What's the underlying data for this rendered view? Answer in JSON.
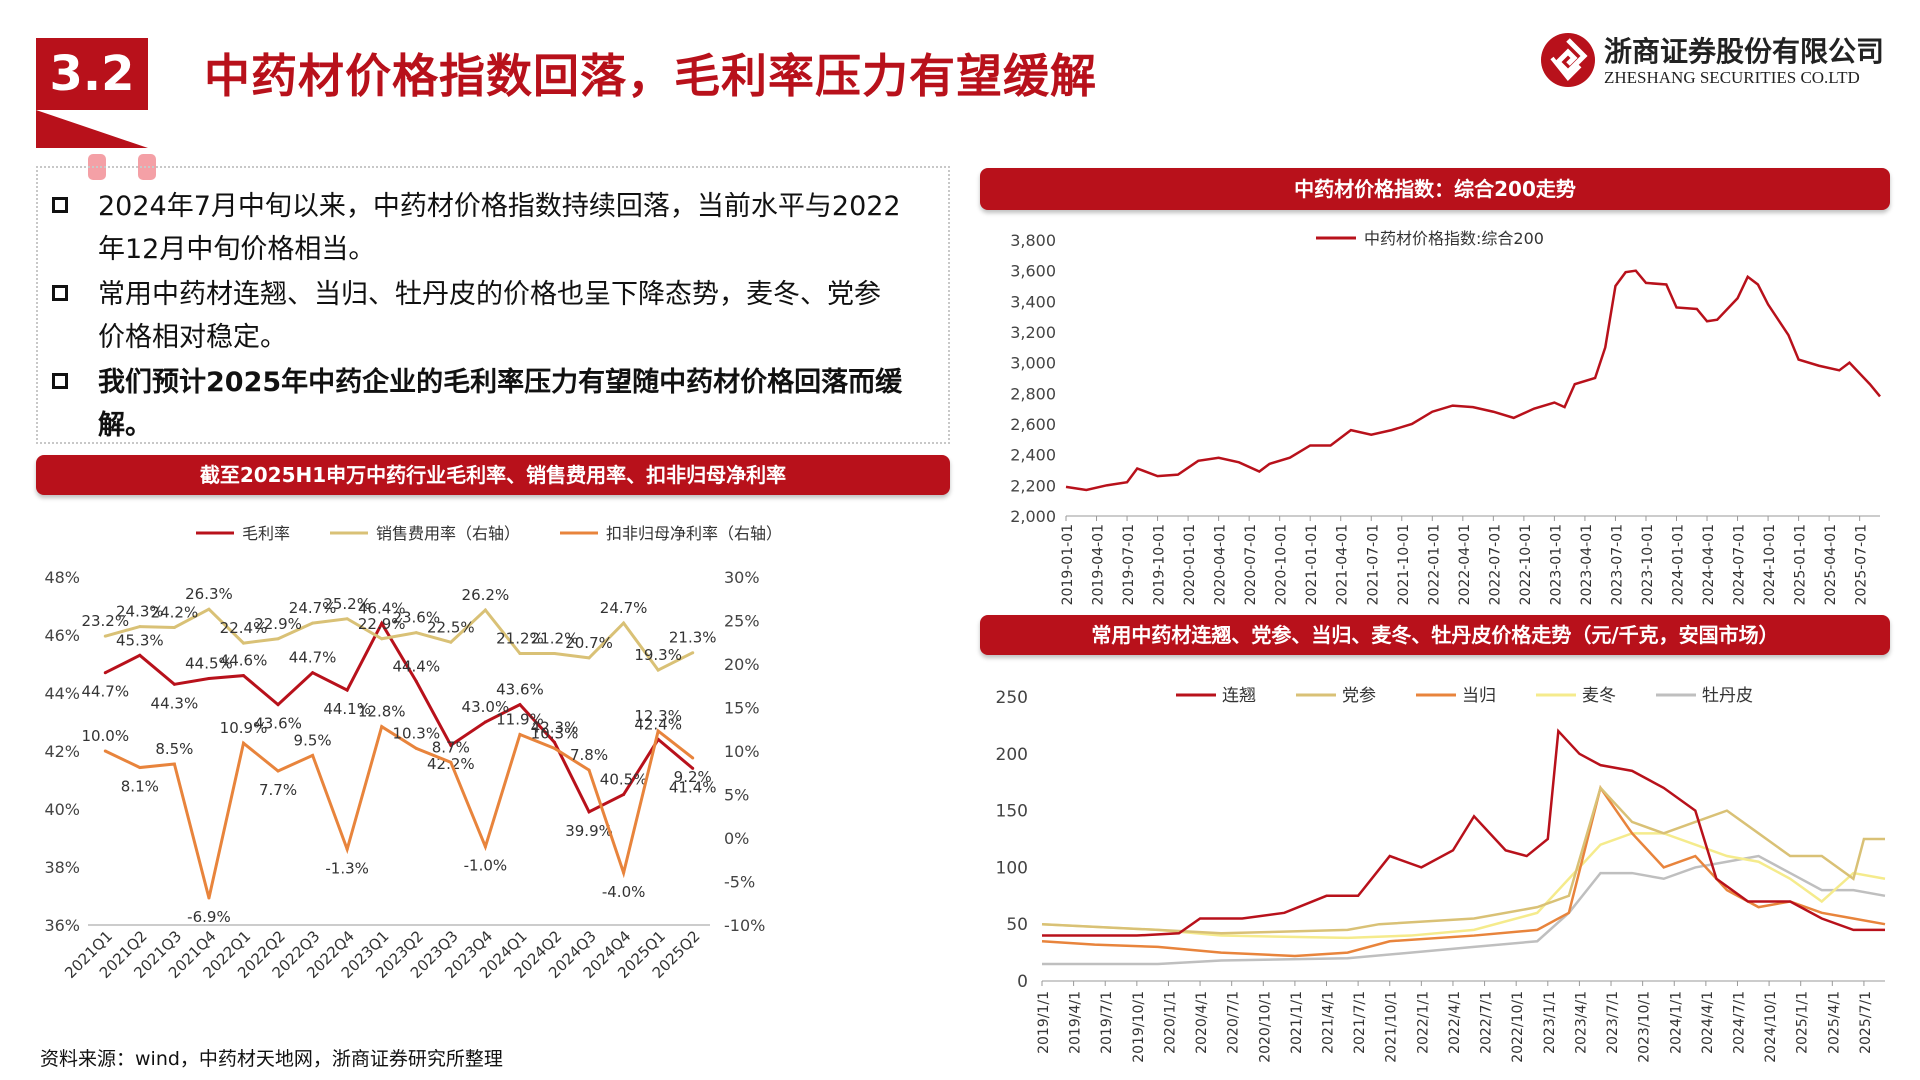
{
  "header": {
    "section_number": "3.2",
    "title": "中药材价格指数回落，毛利率压力有望缓解",
    "company_cn": "浙商证券股份有限公司",
    "company_en": "ZHESHANG SECURITIES CO.LTD"
  },
  "bullets": [
    {
      "line1": "2024年7月中旬以来，中药材价格指数持续回落，当前水平与2022",
      "line2": "年12月中旬价格相当。",
      "bold": false
    },
    {
      "line1": "常用中药材连翘、当归、牡丹皮的价格也呈下降态势，麦冬、党参",
      "line2": "价格相对稳定。",
      "bold": false
    },
    {
      "line1": "我们预计2025年中药企业的毛利率压力有望随中药材价格回落而缓",
      "line2": "解。",
      "bold": true
    }
  ],
  "banners": {
    "left": "截至2025H1申万中药行业毛利率、销售费用率、扣非归母净利率",
    "top_right": "中药材价格指数：综合200走势",
    "bottom_right": "常用中药材连翘、党参、当归、麦冬、牡丹皮价格走势（元/千克，安国市场）"
  },
  "source": "资料来源：wind，中药材天地网，浙商证券研究所整理",
  "colors": {
    "brand_red": "#b8111b",
    "gold": "#d9c176",
    "orange": "#e8843c",
    "yellow": "#f5eb8c",
    "gray": "#bfbfbf"
  },
  "chart_data": [
    {
      "type": "line",
      "categories": [
        "2021Q1",
        "2021Q2",
        "2021Q3",
        "2021Q4",
        "2022Q1",
        "2022Q2",
        "2022Q3",
        "2022Q4",
        "2023Q1",
        "2023Q2",
        "2023Q3",
        "2023Q4",
        "2024Q1",
        "2024Q2",
        "2024Q3",
        "2024Q4",
        "2025Q1",
        "2025Q2"
      ],
      "series": [
        {
          "name": "毛利率",
          "axis": "left",
          "color": "#b8111b",
          "values": [
            44.7,
            45.3,
            44.3,
            44.5,
            44.6,
            43.6,
            44.7,
            44.1,
            46.4,
            44.4,
            42.2,
            43.0,
            43.6,
            42.3,
            39.9,
            40.5,
            42.4,
            41.4
          ],
          "labels": [
            "44.7%",
            "45.3%",
            "44.3%",
            "44.5%",
            "44.6%",
            "43.6%",
            "44.7%",
            "44.1%",
            "46.4%",
            "44.4%",
            "42.2%",
            "43.0%",
            "43.6%",
            "42.3%",
            "39.9%",
            "40.5%",
            "42.4%",
            "41.4%"
          ]
        },
        {
          "name": "销售费用率（右轴）",
          "axis": "right",
          "color": "#d9c176",
          "values": [
            23.2,
            24.3,
            24.2,
            26.3,
            22.4,
            22.9,
            24.7,
            25.2,
            22.9,
            23.6,
            22.5,
            26.2,
            21.2,
            21.2,
            20.7,
            24.7,
            19.3,
            21.3
          ],
          "labels": [
            "23.2%",
            "24.3%",
            "24.2%",
            "26.3%",
            "22.4%",
            "22.9%",
            "24.7%",
            "25.2%",
            "22.9%",
            "23.6%",
            "22.5%",
            "26.2%",
            "21.2%",
            "21.2%",
            "20.7%",
            "24.7%",
            "19.3%",
            "21.3%"
          ]
        },
        {
          "name": "扣非归母净利率（右轴）",
          "axis": "right",
          "color": "#e8843c",
          "values": [
            10.0,
            8.1,
            8.5,
            -6.9,
            10.9,
            7.7,
            9.5,
            -1.3,
            12.8,
            10.3,
            8.7,
            -1.0,
            11.9,
            10.3,
            7.8,
            -4.0,
            12.3,
            9.2
          ],
          "labels": [
            "10.0%",
            "8.1%",
            "8.5%",
            "-6.9%",
            "10.9%",
            "7.7%",
            "9.5%",
            "-1.3%",
            "12.8%",
            "10.3%",
            "8.7%",
            "-1.0%",
            "11.9%",
            "10.3%",
            "7.8%",
            "-4.0%",
            "12.3%",
            "9.2%"
          ]
        }
      ],
      "y_left": {
        "range": [
          36,
          48
        ],
        "ticks": [
          "36%",
          "38%",
          "40%",
          "42%",
          "44%",
          "46%",
          "48%"
        ]
      },
      "y_right": {
        "range": [
          -10,
          30
        ],
        "ticks": [
          "-10%",
          "-5%",
          "0%",
          "5%",
          "10%",
          "15%",
          "20%",
          "25%",
          "30%"
        ]
      },
      "legend": "top"
    },
    {
      "type": "line",
      "series": [
        {
          "name": "中药材价格指数:综合200",
          "color": "#b8111b",
          "points": [
            [
              "2019-01",
              2190
            ],
            [
              "2019-03",
              2170
            ],
            [
              "2019-05",
              2200
            ],
            [
              "2019-07",
              2220
            ],
            [
              "2019-08",
              2310
            ],
            [
              "2019-10",
              2260
            ],
            [
              "2019-12",
              2270
            ],
            [
              "2020-02",
              2360
            ],
            [
              "2020-04",
              2380
            ],
            [
              "2020-06",
              2350
            ],
            [
              "2020-08",
              2290
            ],
            [
              "2020-09",
              2340
            ],
            [
              "2020-11",
              2380
            ],
            [
              "2021-01",
              2460
            ],
            [
              "2021-03",
              2460
            ],
            [
              "2021-05",
              2560
            ],
            [
              "2021-07",
              2530
            ],
            [
              "2021-09",
              2560
            ],
            [
              "2021-11",
              2600
            ],
            [
              "2022-01",
              2680
            ],
            [
              "2022-03",
              2720
            ],
            [
              "2022-05",
              2710
            ],
            [
              "2022-07",
              2680
            ],
            [
              "2022-09",
              2640
            ],
            [
              "2022-11",
              2700
            ],
            [
              "2023-01",
              2740
            ],
            [
              "2023-02",
              2710
            ],
            [
              "2023-03",
              2860
            ],
            [
              "2023-05",
              2900
            ],
            [
              "2023-06",
              3100
            ],
            [
              "2023-07",
              3500
            ],
            [
              "2023-08",
              3590
            ],
            [
              "2023-09",
              3600
            ],
            [
              "2023-10",
              3520
            ],
            [
              "2023-12",
              3510
            ],
            [
              "2024-01",
              3360
            ],
            [
              "2024-03",
              3350
            ],
            [
              "2024-04",
              3270
            ],
            [
              "2024-05",
              3280
            ],
            [
              "2024-07",
              3420
            ],
            [
              "2024-08",
              3560
            ],
            [
              "2024-09",
              3510
            ],
            [
              "2024-10",
              3380
            ],
            [
              "2024-12",
              3180
            ],
            [
              "2025-01",
              3020
            ],
            [
              "2025-03",
              2980
            ],
            [
              "2025-05",
              2950
            ],
            [
              "2025-06",
              3000
            ],
            [
              "2025-08",
              2860
            ],
            [
              "2025-09",
              2780
            ]
          ]
        }
      ],
      "x_ticks": [
        "2019-01-01",
        "2019-04-01",
        "2019-07-01",
        "2019-10-01",
        "2020-01-01",
        "2020-04-01",
        "2020-07-01",
        "2020-10-01",
        "2021-01-01",
        "2021-04-01",
        "2021-07-01",
        "2021-10-01",
        "2022-01-01",
        "2022-04-01",
        "2022-07-01",
        "2022-10-01",
        "2023-01-01",
        "2023-04-01",
        "2023-07-01",
        "2023-10-01",
        "2024-01-01",
        "2024-04-01",
        "2024-07-01",
        "2024-10-01",
        "2025-01-01",
        "2025-04-01",
        "2025-07-01"
      ],
      "y_ticks": [
        "2,000",
        "2,200",
        "2,400",
        "2,600",
        "2,800",
        "3,000",
        "3,200",
        "3,400",
        "3,600",
        "3,800"
      ],
      "ylim": [
        2000,
        3800
      ],
      "legend": "top"
    },
    {
      "type": "line",
      "x_ticks": [
        "2019/1/1",
        "2019/4/1",
        "2019/7/1",
        "2019/10/1",
        "2020/1/1",
        "2020/4/1",
        "2020/7/1",
        "2020/10/1",
        "2021/1/1",
        "2021/4/1",
        "2021/7/1",
        "2021/10/1",
        "2022/1/1",
        "2022/4/1",
        "2022/7/1",
        "2022/10/1",
        "2023/1/1",
        "2023/4/1",
        "2023/7/1",
        "2023/10/1",
        "2024/1/1",
        "2024/4/1",
        "2024/7/1",
        "2024/10/1",
        "2025/1/1",
        "2025/4/1",
        "2025/7/1"
      ],
      "y_ticks": [
        "0",
        "50",
        "100",
        "150",
        "200",
        "250"
      ],
      "ylim": [
        0,
        250
      ],
      "series": [
        {
          "name": "连翘",
          "color": "#b8111b",
          "points": [
            [
              "2019-01",
              40
            ],
            [
              "2019-10",
              40
            ],
            [
              "2020-02",
              42
            ],
            [
              "2020-04",
              55
            ],
            [
              "2020-08",
              55
            ],
            [
              "2020-12",
              60
            ],
            [
              "2021-04",
              75
            ],
            [
              "2021-07",
              75
            ],
            [
              "2021-10",
              110
            ],
            [
              "2022-01",
              100
            ],
            [
              "2022-04",
              115
            ],
            [
              "2022-06",
              145
            ],
            [
              "2022-09",
              115
            ],
            [
              "2022-11",
              110
            ],
            [
              "2023-01",
              125
            ],
            [
              "2023-02",
              220
            ],
            [
              "2023-04",
              200
            ],
            [
              "2023-06",
              190
            ],
            [
              "2023-09",
              185
            ],
            [
              "2023-12",
              170
            ],
            [
              "2024-03",
              150
            ],
            [
              "2024-05",
              90
            ],
            [
              "2024-08",
              70
            ],
            [
              "2024-12",
              70
            ],
            [
              "2025-03",
              55
            ],
            [
              "2025-06",
              45
            ],
            [
              "2025-09",
              45
            ]
          ]
        },
        {
          "name": "党参",
          "color": "#d9c176",
          "points": [
            [
              "2019-01",
              50
            ],
            [
              "2019-12",
              45
            ],
            [
              "2020-06",
              42
            ],
            [
              "2021-06",
              45
            ],
            [
              "2021-09",
              50
            ],
            [
              "2022-06",
              55
            ],
            [
              "2022-12",
              65
            ],
            [
              "2023-03",
              75
            ],
            [
              "2023-06",
              170
            ],
            [
              "2023-09",
              140
            ],
            [
              "2023-12",
              130
            ],
            [
              "2024-03",
              140
            ],
            [
              "2024-06",
              150
            ],
            [
              "2024-09",
              130
            ],
            [
              "2024-12",
              110
            ],
            [
              "2025-03",
              110
            ],
            [
              "2025-06",
              90
            ],
            [
              "2025-07",
              125
            ],
            [
              "2025-09",
              125
            ]
          ]
        },
        {
          "name": "当归",
          "color": "#e8843c",
          "points": [
            [
              "2019-01",
              35
            ],
            [
              "2019-06",
              32
            ],
            [
              "2019-12",
              30
            ],
            [
              "2020-06",
              25
            ],
            [
              "2021-01",
              22
            ],
            [
              "2021-06",
              25
            ],
            [
              "2021-10",
              35
            ],
            [
              "2022-06",
              40
            ],
            [
              "2022-12",
              45
            ],
            [
              "2023-03",
              60
            ],
            [
              "2023-06",
              170
            ],
            [
              "2023-09",
              130
            ],
            [
              "2023-12",
              100
            ],
            [
              "2024-03",
              110
            ],
            [
              "2024-06",
              80
            ],
            [
              "2024-09",
              65
            ],
            [
              "2024-12",
              70
            ],
            [
              "2025-03",
              60
            ],
            [
              "2025-06",
              55
            ],
            [
              "2025-09",
              50
            ]
          ]
        },
        {
          "name": "麦冬",
          "color": "#f5eb8c",
          "points": [
            [
              "2019-01",
              50
            ],
            [
              "2019-12",
              45
            ],
            [
              "2020-06",
              40
            ],
            [
              "2021-06",
              38
            ],
            [
              "2021-12",
              40
            ],
            [
              "2022-06",
              45
            ],
            [
              "2022-12",
              60
            ],
            [
              "2023-03",
              90
            ],
            [
              "2023-06",
              120
            ],
            [
              "2023-09",
              130
            ],
            [
              "2023-12",
              130
            ],
            [
              "2024-03",
              120
            ],
            [
              "2024-06",
              110
            ],
            [
              "2024-09",
              105
            ],
            [
              "2024-12",
              90
            ],
            [
              "2025-03",
              70
            ],
            [
              "2025-06",
              95
            ],
            [
              "2025-09",
              90
            ]
          ]
        },
        {
          "name": "牡丹皮",
          "color": "#bfbfbf",
          "points": [
            [
              "2019-01",
              15
            ],
            [
              "2019-12",
              15
            ],
            [
              "2020-06",
              18
            ],
            [
              "2021-06",
              20
            ],
            [
              "2021-12",
              25
            ],
            [
              "2022-06",
              30
            ],
            [
              "2022-12",
              35
            ],
            [
              "2023-03",
              60
            ],
            [
              "2023-06",
              95
            ],
            [
              "2023-09",
              95
            ],
            [
              "2023-12",
              90
            ],
            [
              "2024-03",
              100
            ],
            [
              "2024-06",
              105
            ],
            [
              "2024-09",
              110
            ],
            [
              "2024-12",
              95
            ],
            [
              "2025-03",
              80
            ],
            [
              "2025-06",
              80
            ],
            [
              "2025-09",
              75
            ]
          ]
        }
      ],
      "legend": "top"
    }
  ]
}
